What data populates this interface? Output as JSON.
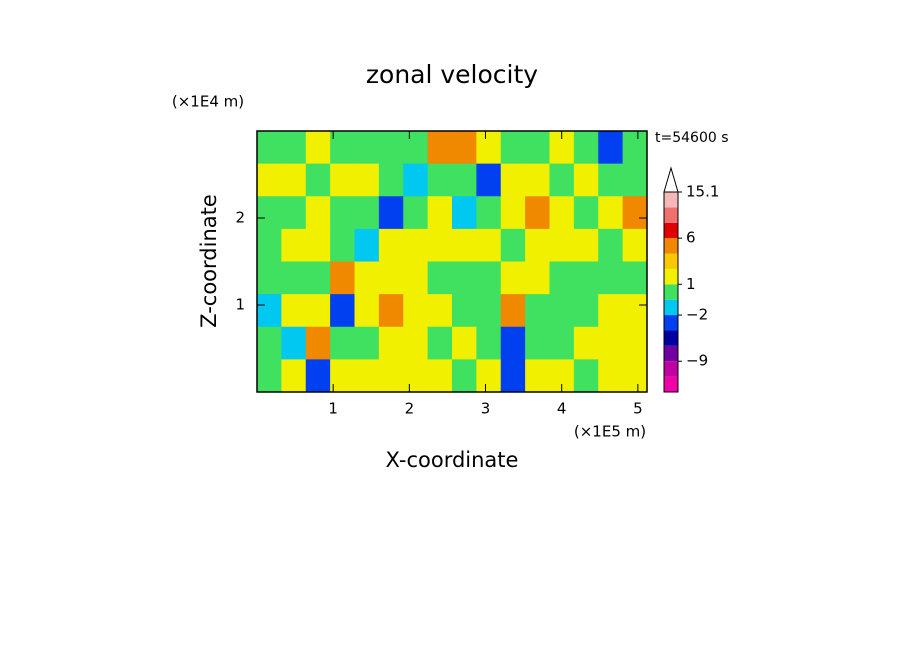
{
  "chart_data": {
    "type": "contour",
    "title": "zonal velocity",
    "xlabel": "X-coordinate",
    "ylabel": "Z-coordinate",
    "xunit": "(×1E5 m)",
    "yunit": "(×1E4 m)",
    "annotation": "t=54600 s",
    "xlim": [
      0,
      5.12
    ],
    "ylim": [
      0,
      3
    ],
    "xticks": [
      1,
      2,
      3,
      4,
      5
    ],
    "yticks": [
      1,
      2
    ],
    "x": [
      0.16,
      0.48,
      0.8,
      1.12,
      1.44,
      1.76,
      2.08,
      2.4,
      2.72,
      3.04,
      3.36,
      3.68,
      4.0,
      4.32,
      4.64,
      4.96
    ],
    "y": [
      2.8125,
      2.4375,
      2.0625,
      1.6875,
      1.3125,
      0.9375,
      0.5625,
      0.1875
    ],
    "z": [
      [
        0,
        0,
        1.5,
        0,
        0,
        0,
        0,
        4,
        4,
        1.5,
        0,
        0,
        1.5,
        0,
        -3,
        0
      ],
      [
        1.5,
        1.5,
        0,
        1.5,
        1.5,
        0,
        -1.5,
        0,
        0,
        -3,
        1.5,
        1.5,
        0,
        1.5,
        0,
        0
      ],
      [
        0,
        0,
        1.5,
        0,
        0,
        -3,
        0,
        1.5,
        -1.5,
        0,
        1.5,
        4,
        1.5,
        0,
        1.5,
        4
      ],
      [
        0,
        1.5,
        1.5,
        0,
        -1.5,
        1.5,
        1.5,
        1.5,
        1.5,
        1.5,
        0,
        1.5,
        1.5,
        1.5,
        0,
        1.5
      ],
      [
        0,
        0,
        0,
        4,
        1.5,
        1.5,
        1.5,
        0,
        0,
        0,
        1.5,
        1.5,
        0,
        0,
        0,
        0
      ],
      [
        -1.5,
        1.5,
        1.5,
        -3,
        1.5,
        4,
        1.5,
        1.5,
        0,
        0,
        4,
        0,
        0,
        0,
        1.5,
        1.5
      ],
      [
        0,
        -1.5,
        4,
        0,
        0,
        1.5,
        1.5,
        0,
        1.5,
        0,
        -3,
        0,
        0,
        1.5,
        1.5,
        1.5
      ],
      [
        0,
        1.5,
        -4,
        1.5,
        1.5,
        1.5,
        1.5,
        1.5,
        0,
        1.5,
        -3,
        1.5,
        1.5,
        0,
        1.5,
        1.5
      ]
    ],
    "levels": [
      -15,
      -12,
      -9,
      -6,
      -4,
      -2,
      -1,
      1,
      2,
      3,
      6,
      9,
      12,
      15.1
    ],
    "colors": [
      "#f000a8",
      "#c000a0",
      "#7000a0",
      "#0000a0",
      "#0040f0",
      "#00c8f0",
      "#40e060",
      "#f0f000",
      "#f8c800",
      "#f08800",
      "#e00000",
      "#f07070",
      "#f4b8b8"
    ],
    "colorbar_ticks": [
      15.1,
      6,
      1,
      {
        "value": -2,
        "label": "−2"
      },
      {
        "value": -9,
        "label": "−9"
      }
    ]
  }
}
